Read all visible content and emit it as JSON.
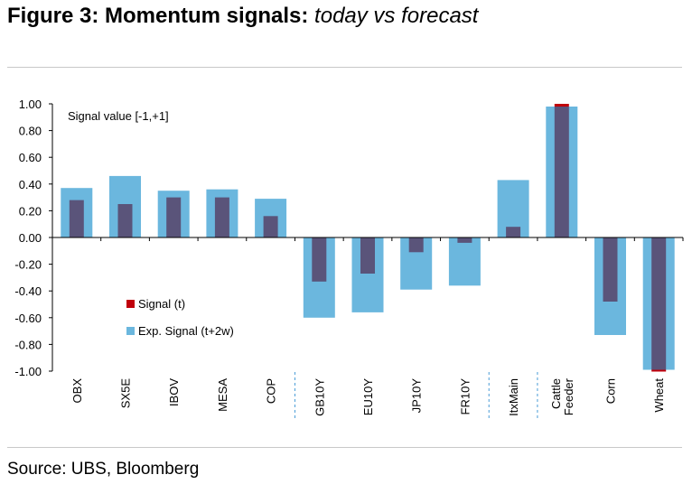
{
  "figure": {
    "title_bold": "Figure 3: Momentum signals:",
    "title_italic": "today vs forecast",
    "source": "Source: UBS, Bloomberg"
  },
  "colors": {
    "signal": "#c0000b",
    "signal_overlap": "#5a547a",
    "expected": "#6bb7de",
    "axis": "#000000",
    "separator": "#4a9cd6"
  },
  "chart_data": {
    "type": "bar",
    "y_title": "Signal value [-1,+1]",
    "ylim": [
      -1.0,
      1.0
    ],
    "y_ticks": [
      "1.00",
      "0.80",
      "0.60",
      "0.40",
      "0.20",
      "0.00",
      "-0.20",
      "-0.40",
      "-0.60",
      "-0.80",
      "-1.00"
    ],
    "categories": [
      "OBX",
      "SX5E",
      "IBOV",
      "MESA",
      "COP",
      "GB10Y",
      "EU10Y",
      "JP10Y",
      "FR10Y",
      "ItxMain",
      "Cattle Feeder",
      "Corn",
      "Wheat"
    ],
    "group_separators_after": [
      "COP",
      "FR10Y",
      "ItxMain"
    ],
    "series": [
      {
        "name": "Signal (t)",
        "values": [
          0.28,
          0.25,
          0.3,
          0.3,
          0.16,
          -0.33,
          -0.27,
          -0.11,
          -0.04,
          0.08,
          1.0,
          -0.48,
          -1.0
        ]
      },
      {
        "name": "Exp. Signal (t+2w)",
        "values": [
          0.37,
          0.46,
          0.35,
          0.36,
          0.29,
          -0.6,
          -0.56,
          -0.39,
          -0.36,
          0.43,
          0.98,
          -0.73,
          -0.99
        ]
      }
    ],
    "legend_position": "lower-left",
    "grid": false
  }
}
